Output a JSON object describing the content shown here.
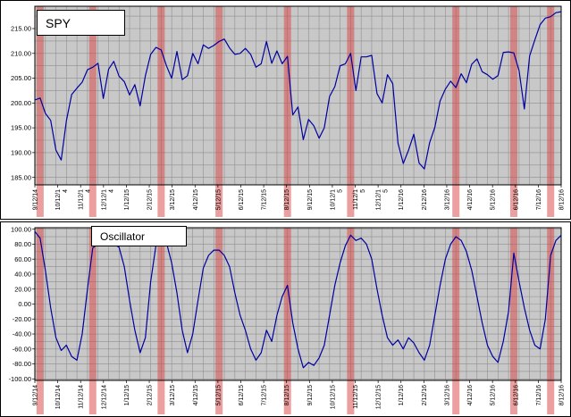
{
  "colors": {
    "plot_background": "#c8c8c8",
    "grid": "#8f8f8f",
    "series_line": "#0000a0",
    "signal_band": "#d84040",
    "axis_text": "#000000"
  },
  "chart_data": [
    {
      "id": "spy",
      "type": "line",
      "title": "SPY",
      "line_color": "#0000a0",
      "plot_bg": "#c8c8c8",
      "grid_color": "#8f8f8f",
      "highlight_color": "#d84040",
      "ylim": [
        185,
        215
      ],
      "yticks": [
        215,
        210,
        205,
        200,
        195,
        190,
        185
      ],
      "x_tick_labels": [
        "9/12/14",
        "10/12/1\n4",
        "11/12/1\n4",
        "12/12/1\n4",
        "1/12/15",
        "2/12/15",
        "3/12/15",
        "4/12/15",
        "5/12/15",
        "6/12/15",
        "7/12/15",
        "8/12/15",
        "9/12/15",
        "10/12/1\n5",
        "11/12/1\n5",
        "12/12/1\n5",
        "1/12/16",
        "2/12/16",
        "3/12/16",
        "4/12/16",
        "5/12/16",
        "6/12/16",
        "7/12/16",
        "8/12/16"
      ],
      "values": [
        200.6,
        201.0,
        197.9,
        196.5,
        190.5,
        188.5,
        196.4,
        201.7,
        203.0,
        204.2,
        206.7,
        207.2,
        208.0,
        200.9,
        206.8,
        208.4,
        205.4,
        204.3,
        201.6,
        203.7,
        199.4,
        205.5,
        209.8,
        211.2,
        210.7,
        207.5,
        205.0,
        210.4,
        204.7,
        205.5,
        210.0,
        207.9,
        211.7,
        211.0,
        211.6,
        212.4,
        212.9,
        211.1,
        209.8,
        210.0,
        211.0,
        209.8,
        207.2,
        207.9,
        212.4,
        208.0,
        210.5,
        207.9,
        209.4,
        197.6,
        199.2,
        192.6,
        196.7,
        195.4,
        192.9,
        195.0,
        201.3,
        203.3,
        207.5,
        207.9,
        210.0,
        202.5,
        209.3,
        209.3,
        209.6,
        201.9,
        200.0,
        205.7,
        203.9,
        191.9,
        187.8,
        190.5,
        193.7,
        187.9,
        186.7,
        192.0,
        195.1,
        200.4,
        202.8,
        204.4,
        203.1,
        205.9,
        204.1,
        207.8,
        208.9,
        206.3,
        205.7,
        204.8,
        205.5,
        210.2,
        210.3,
        210.1,
        206.5,
        198.8,
        209.5,
        212.7,
        215.8,
        217.1,
        217.4,
        218.2,
        218.4
      ],
      "highlight_weeks": [
        1,
        11,
        24,
        35,
        48,
        60,
        80,
        91,
        98
      ]
    },
    {
      "id": "oscillator",
      "type": "line",
      "title": "Oscillator",
      "line_color": "#0000a0",
      "plot_bg": "#c8c8c8",
      "grid_color": "#8f8f8f",
      "highlight_color": "#d84040",
      "ylim": [
        -100,
        100
      ],
      "yticks": [
        100,
        80,
        60,
        40,
        20,
        0,
        -20,
        -40,
        -60,
        -80,
        -100
      ],
      "x_tick_labels": [
        "9/12/14",
        "10/12/14",
        "11/12/14",
        "12/12/14",
        "1/12/15",
        "2/12/15",
        "3/12/15",
        "4/12/15",
        "5/12/15",
        "6/12/15",
        "7/12/15",
        "8/12/15",
        "9/12/15",
        "10/12/15",
        "11/12/15",
        "12/12/15",
        "1/12/16",
        "2/12/16",
        "3/12/16",
        "4/12/16",
        "5/12/16",
        "6/12/16",
        "7/12/16",
        "8/12/16"
      ],
      "values": [
        97,
        88,
        45,
        -5,
        -45,
        -62,
        -55,
        -70,
        -75,
        -40,
        20,
        75,
        80,
        78,
        82,
        80,
        76,
        50,
        5,
        -35,
        -65,
        -45,
        30,
        78,
        88,
        82,
        55,
        15,
        -35,
        -65,
        -40,
        5,
        48,
        65,
        72,
        72,
        65,
        50,
        15,
        -15,
        -35,
        -60,
        -75,
        -65,
        -35,
        -50,
        -15,
        10,
        25,
        -25,
        -60,
        -85,
        -78,
        -82,
        -72,
        -55,
        -15,
        25,
        55,
        78,
        92,
        85,
        88,
        80,
        60,
        20,
        -15,
        -45,
        -55,
        -48,
        -60,
        -45,
        -52,
        -65,
        -75,
        -55,
        -15,
        25,
        60,
        80,
        90,
        85,
        70,
        45,
        10,
        -25,
        -55,
        -70,
        -78,
        -50,
        -10,
        68,
        30,
        -5,
        -35,
        -55,
        -60,
        -20,
        65,
        85,
        92
      ],
      "highlight_weeks": [
        1,
        11,
        24,
        35,
        48,
        60,
        80,
        91,
        98
      ]
    }
  ]
}
